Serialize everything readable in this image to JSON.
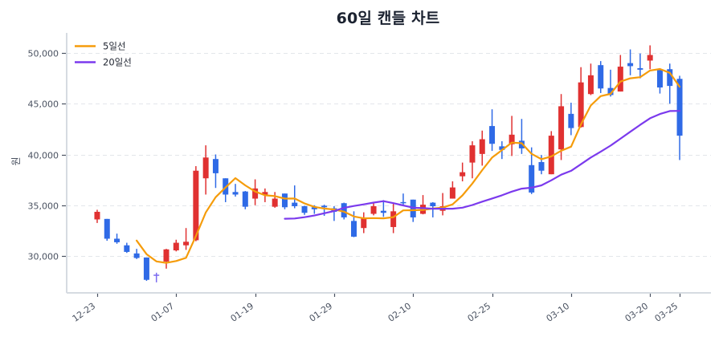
{
  "chart_data": {
    "type": "candlestick",
    "title": "60일 캔들 차트",
    "xlabel": "",
    "ylabel": "원",
    "ylim": [
      26364,
      51976
    ],
    "xlim": [
      -3.09,
      62.17
    ],
    "grid": true,
    "legend_position": "upper-left",
    "yticks": [
      30000,
      35000,
      40000,
      45000,
      50000
    ],
    "ytick_labels": [
      "30,000",
      "35,000",
      "40,000",
      "45,000",
      "50,000"
    ],
    "xticks": [
      {
        "index": 0,
        "label": "12-23"
      },
      {
        "index": 8,
        "label": "01-07"
      },
      {
        "index": 16,
        "label": "01-19"
      },
      {
        "index": 24,
        "label": "01-29"
      },
      {
        "index": 32,
        "label": "02-10"
      },
      {
        "index": 40,
        "label": "02-25"
      },
      {
        "index": 48,
        "label": "03-10"
      },
      {
        "index": 56,
        "label": "03-20"
      },
      {
        "index": 59,
        "label": "03-25"
      }
    ],
    "colors": {
      "up": "#e03131",
      "down": "#2f6ae6",
      "flat": "#7c6cf0",
      "grid": "#e3e6ea",
      "spine": "#d6dbe1"
    },
    "ohlc_columns": [
      "open",
      "high",
      "low",
      "close"
    ],
    "ohlc": [
      [
        33600,
        34550,
        33250,
        34350
      ],
      [
        33650,
        33650,
        31500,
        31700
      ],
      [
        31700,
        32200,
        31200,
        31350
      ],
      [
        31050,
        31300,
        30300,
        30400
      ],
      [
        30250,
        30700,
        29700,
        29800
      ],
      [
        29850,
        29850,
        27550,
        27650
      ],
      [
        28100,
        28350,
        27400,
        28100
      ],
      [
        29450,
        30700,
        28750,
        30650
      ],
      [
        30550,
        31600,
        30450,
        31300
      ],
      [
        31050,
        32750,
        30600,
        31400
      ],
      [
        31550,
        38850,
        31450,
        38400
      ],
      [
        37650,
        40900,
        36050,
        39700
      ],
      [
        39550,
        40000,
        36700,
        38150
      ],
      [
        37650,
        37650,
        35300,
        36050
      ],
      [
        36300,
        37100,
        35850,
        36050
      ],
      [
        36350,
        36400,
        34600,
        34850
      ],
      [
        35650,
        37550,
        35000,
        36650
      ],
      [
        36050,
        36650,
        35300,
        36300
      ],
      [
        34850,
        36300,
        34750,
        35650
      ],
      [
        36150,
        36150,
        34600,
        34800
      ],
      [
        35250,
        36950,
        34700,
        34900
      ],
      [
        34900,
        34950,
        34050,
        34250
      ],
      [
        34800,
        35000,
        34150,
        34600
      ],
      [
        34950,
        35050,
        33950,
        34800
      ],
      [
        34700,
        34900,
        33450,
        34350
      ],
      [
        35200,
        35250,
        33600,
        33800
      ],
      [
        33450,
        34400,
        31850,
        31900
      ],
      [
        32750,
        34300,
        32250,
        33700
      ],
      [
        34150,
        35250,
        34000,
        34900
      ],
      [
        34450,
        35500,
        33850,
        34250
      ],
      [
        32850,
        35250,
        32250,
        34400
      ],
      [
        35300,
        36150,
        35000,
        35200
      ],
      [
        35550,
        35550,
        33350,
        33800
      ],
      [
        34150,
        36000,
        34100,
        35050
      ],
      [
        35250,
        35300,
        33800,
        34900
      ],
      [
        34450,
        36200,
        34000,
        34900
      ],
      [
        35650,
        37350,
        35650,
        36750
      ],
      [
        37850,
        39200,
        37350,
        38250
      ],
      [
        39200,
        41300,
        37650,
        40900
      ],
      [
        40050,
        42350,
        38900,
        41500
      ],
      [
        42800,
        44450,
        40350,
        41050
      ],
      [
        40800,
        41300,
        39550,
        40450
      ],
      [
        41000,
        43800,
        39850,
        41950
      ],
      [
        41350,
        43500,
        40050,
        40600
      ],
      [
        38950,
        40700,
        36100,
        36250
      ],
      [
        39250,
        39950,
        38050,
        38400
      ],
      [
        38050,
        42300,
        38050,
        41850
      ],
      [
        40500,
        45950,
        39450,
        44750
      ],
      [
        44000,
        45100,
        41900,
        42600
      ],
      [
        42700,
        48600,
        42650,
        47100
      ],
      [
        45950,
        48950,
        45850,
        47800
      ],
      [
        48800,
        49200,
        46050,
        46500
      ],
      [
        46550,
        48350,
        45700,
        45850
      ],
      [
        46200,
        49800,
        46200,
        48650
      ],
      [
        49000,
        50350,
        47800,
        48700
      ],
      [
        48500,
        49950,
        47500,
        48350
      ],
      [
        49250,
        50750,
        48400,
        49800
      ],
      [
        48300,
        48500,
        46000,
        46600
      ],
      [
        48400,
        48950,
        45000,
        46750
      ],
      [
        47450,
        47750,
        39450,
        41850
      ]
    ],
    "series": [
      {
        "name": "5일선",
        "type": "line",
        "color": "#f59c0b",
        "values": [
          null,
          null,
          null,
          null,
          31520,
          30180,
          29460,
          29320,
          29500,
          29820,
          31970,
          34290,
          35790,
          36740,
          37670,
          36960,
          36350,
          35980,
          35900,
          35650,
          35660,
          35180,
          34840,
          34670,
          34580,
          34360,
          33890,
          33710,
          33730,
          33710,
          33830,
          34490,
          34510,
          34540,
          34670,
          34770,
          35080,
          35970,
          37140,
          38460,
          39690,
          40430,
          41170,
          41110,
          40060,
          39530,
          39810,
          40370,
          40770,
          42940,
          44820,
          45750,
          45970,
          47180,
          47500,
          47610,
          48270,
          48420,
          48040,
          46670
        ]
      },
      {
        "name": "20일선",
        "type": "line",
        "color": "#7b3aed",
        "values": [
          null,
          null,
          null,
          null,
          null,
          null,
          null,
          null,
          null,
          null,
          null,
          null,
          null,
          null,
          null,
          null,
          null,
          null,
          null,
          33665,
          33693,
          33820,
          33983,
          34203,
          34430,
          34738,
          34928,
          35080,
          35260,
          35403,
          35203,
          34978,
          34760,
          34710,
          34653,
          34655,
          34660,
          34758,
          35020,
          35355,
          35663,
          35973,
          36340,
          36630,
          36725,
          36955,
          37453,
          38005,
          38390,
          39033,
          39703,
          40268,
          40870,
          41550,
          42240,
          42913,
          43565,
          43983,
          44275,
          44293
        ]
      }
    ]
  }
}
